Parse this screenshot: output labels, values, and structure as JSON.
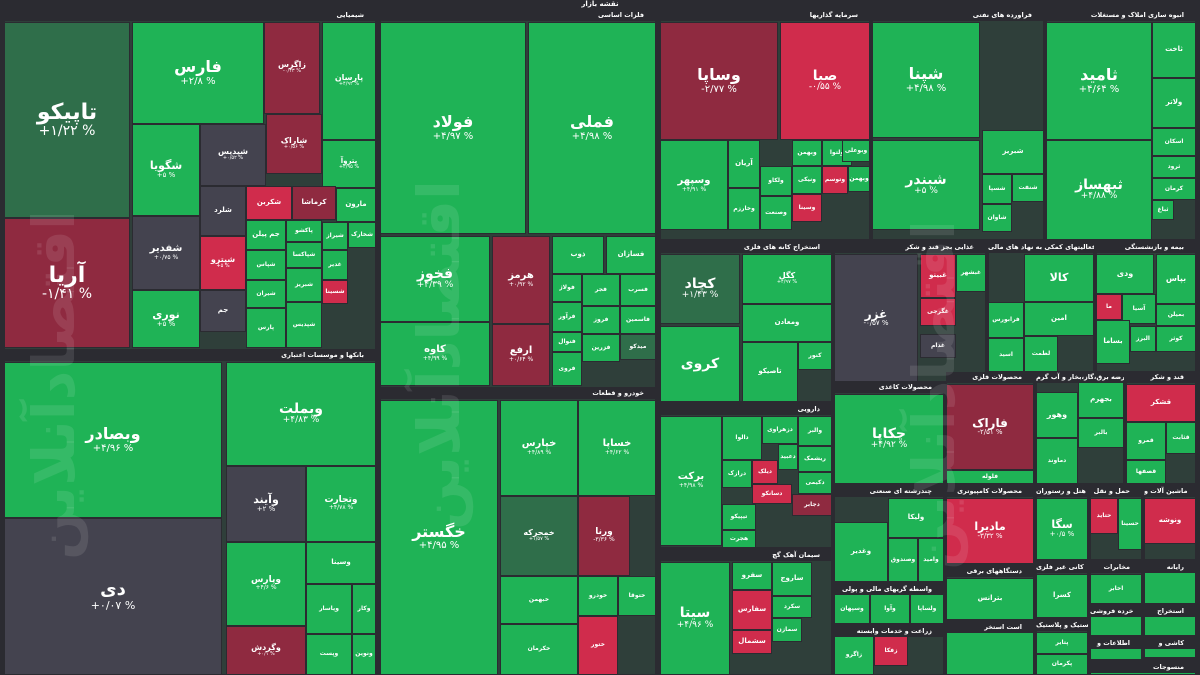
{
  "chart_data": {
    "type": "treemap",
    "title": "نقشه بازار",
    "colors": {
      "up_strong": "#1fb356",
      "up_mid": "#2a9a4f",
      "up_weak": "#2f6e4a",
      "flat": "#44434f",
      "down_weak": "#6a2c3c",
      "down_mid": "#8f2a40",
      "down_strong": "#d02c4c"
    },
    "sectors": [
      {
        "label": "شیمیایی",
        "tiles": [
          {
            "name": "تاپیکو",
            "change": "% ۱/۲۲+"
          },
          {
            "name": "آریا",
            "change": "% ۱/۴۱-"
          },
          {
            "name": "فارس",
            "change": "% ۲/۸+"
          },
          {
            "name": "زاگرس",
            "change": "% ۰/۴۳-"
          },
          {
            "name": "پارسان",
            "change": "% ۴/۹۲+"
          },
          {
            "name": "شگویا",
            "change": "% ۵+"
          },
          {
            "name": "شپدیس",
            "change": "% ۰/۵۲+"
          },
          {
            "name": "شاراک",
            "change": "% ۰/۵۶+"
          },
          {
            "name": "پتروآ",
            "change": "% ۲/۹۵+"
          },
          {
            "name": "شفدیر",
            "change": "% ۰/۷۵+"
          },
          {
            "name": "شکربن",
            "change": ""
          },
          {
            "name": "کرماشا",
            "change": ""
          },
          {
            "name": "مارون",
            "change": ""
          },
          {
            "name": "شلرد",
            "change": ""
          },
          {
            "name": "جم پیلن",
            "change": ""
          },
          {
            "name": "پاکشو",
            "change": ""
          },
          {
            "name": "شیراز",
            "change": ""
          },
          {
            "name": "شخارک",
            "change": ""
          },
          {
            "name": "شپترو",
            "change": "% ۵+"
          },
          {
            "name": "شپاکسا",
            "change": ""
          },
          {
            "name": "غدیر",
            "change": ""
          },
          {
            "name": "شپاس",
            "change": ""
          },
          {
            "name": "شیران",
            "change": ""
          },
          {
            "name": "شسینا",
            "change": ""
          },
          {
            "name": "نوری",
            "change": "% ۵+"
          },
          {
            "name": "جم",
            "change": ""
          },
          {
            "name": "پارس",
            "change": ""
          },
          {
            "name": "شبریز",
            "change": ""
          },
          {
            "name": "شپدیس",
            "change": ""
          }
        ]
      },
      {
        "label": "فلزات اساسی",
        "tiles": [
          {
            "name": "فولاد",
            "change": "% ۴/۹۷+"
          },
          {
            "name": "فملی",
            "change": "% ۴/۹۸+"
          },
          {
            "name": "فخوز",
            "change": "% ۴/۳۹+"
          },
          {
            "name": "هرمز",
            "change": "% ۰/۹۲+"
          },
          {
            "name": "ذوب",
            "change": ""
          },
          {
            "name": "فسازان",
            "change": ""
          },
          {
            "name": "کاوه",
            "change": "% ۴/۹۹+"
          },
          {
            "name": "ارفع",
            "change": "% ۰/۶۴+"
          },
          {
            "name": "فولاژ",
            "change": ""
          },
          {
            "name": "فجر",
            "change": ""
          },
          {
            "name": "فسرب",
            "change": ""
          },
          {
            "name": "فاسمین",
            "change": ""
          },
          {
            "name": "فروز",
            "change": ""
          },
          {
            "name": "فرآور",
            "change": ""
          },
          {
            "name": "فنوال",
            "change": ""
          },
          {
            "name": "فزرین",
            "change": ""
          },
          {
            "name": "فروی",
            "change": ""
          },
          {
            "name": "میدکو",
            "change": ""
          }
        ]
      },
      {
        "label": "سرمایه گذاریها",
        "tiles": [
          {
            "name": "وساپا",
            "change": "% ۲/۷۷-"
          },
          {
            "name": "صبا",
            "change": "% ۰/۵۵-"
          },
          {
            "name": "وسپهر",
            "change": "% ۴/۹۱+"
          },
          {
            "name": "آریان",
            "change": ""
          },
          {
            "name": "وبهمن",
            "change": ""
          },
          {
            "name": "ولتوا",
            "change": ""
          },
          {
            "name": "وبوعلی",
            "change": ""
          },
          {
            "name": "وخارزم",
            "change": ""
          },
          {
            "name": "وتوسم",
            "change": ""
          },
          {
            "name": "ولکاو",
            "change": ""
          },
          {
            "name": "ونیکی",
            "change": ""
          },
          {
            "name": "وصنعت",
            "change": ""
          },
          {
            "name": "وبهمن",
            "change": ""
          },
          {
            "name": "وسینا",
            "change": ""
          }
        ]
      },
      {
        "label": "فراورده های نفتی",
        "tiles": [
          {
            "name": "شپنا",
            "change": "% ۴/۹۸+"
          },
          {
            "name": "شبندر",
            "change": "% ۵+"
          },
          {
            "name": "شبریز",
            "change": ""
          },
          {
            "name": "شسپا",
            "change": ""
          },
          {
            "name": "شنفت",
            "change": ""
          },
          {
            "name": "شاوان",
            "change": ""
          }
        ]
      },
      {
        "label": "انبوه سازی املاک و مستغلات",
        "tiles": [
          {
            "name": "ثامید",
            "change": "% ۴/۶۴+"
          },
          {
            "name": "ثبهساز",
            "change": "% ۴/۸۸+"
          },
          {
            "name": "ثاخت",
            "change": ""
          },
          {
            "name": "ولاتر",
            "change": ""
          },
          {
            "name": "اسکان",
            "change": ""
          },
          {
            "name": "ثرود",
            "change": ""
          },
          {
            "name": "کرمان",
            "change": ""
          },
          {
            "name": "ثباغ",
            "change": ""
          }
        ]
      },
      {
        "label": "بانکها و موسسات اعتباری",
        "tiles": [
          {
            "name": "وبصادر",
            "change": "% ۴/۹۶+"
          },
          {
            "name": "دی",
            "change": "% ۰/۰۷+"
          },
          {
            "name": "وبملت",
            "change": "% ۴/۸۳+"
          },
          {
            "name": "وآیند",
            "change": "% ۲+"
          },
          {
            "name": "وتجارت",
            "change": "% ۴/۷۸+"
          },
          {
            "name": "وپارس",
            "change": "% ۴/۶+"
          },
          {
            "name": "وسینا",
            "change": ""
          },
          {
            "name": "وپاسار",
            "change": ""
          },
          {
            "name": "وکار",
            "change": ""
          },
          {
            "name": "وگردش",
            "change": "% ۰/۱+"
          },
          {
            "name": "وپست",
            "change": ""
          },
          {
            "name": "ونوین",
            "change": ""
          }
        ]
      },
      {
        "label": "خودرو و قطعات",
        "tiles": [
          {
            "name": "خگستر",
            "change": "% ۴/۹۵+"
          },
          {
            "name": "خپارس",
            "change": "% ۴/۸۹+"
          },
          {
            "name": "خساپا",
            "change": "% ۴/۶۲+"
          },
          {
            "name": "خمحرکه",
            "change": "% ۱/۵۷+"
          },
          {
            "name": "ورنا",
            "change": "% ۳/۳۶-"
          },
          {
            "name": "خبهمن",
            "change": ""
          },
          {
            "name": "خودرو",
            "change": ""
          },
          {
            "name": "ختوقا",
            "change": ""
          },
          {
            "name": "خکرمان",
            "change": ""
          },
          {
            "name": "ختور",
            "change": ""
          }
        ]
      },
      {
        "label": "استخراج کانه های فلزی",
        "tiles": [
          {
            "name": "کچاد",
            "change": "% ۱/۴۳+"
          },
          {
            "name": "کگل",
            "change": "% ۴/۹۷+"
          },
          {
            "name": "ومعادن",
            "change": ""
          },
          {
            "name": "کروی",
            "change": ""
          },
          {
            "name": "تاصیکو",
            "change": ""
          },
          {
            "name": "کنور",
            "change": ""
          }
        ]
      },
      {
        "label": "غذایی بجز قند و شکر",
        "tiles": [
          {
            "name": "غزر",
            "change": "% ۰/۵۷-"
          },
          {
            "name": "غبینو",
            "change": ""
          },
          {
            "name": "غگرجی",
            "change": ""
          },
          {
            "name": "غبشهر",
            "change": ""
          },
          {
            "name": "غدام",
            "change": ""
          }
        ]
      },
      {
        "label": "فعالیتهای کمکی به نهاد های مالی",
        "tiles": [
          {
            "name": "کالا",
            "change": ""
          },
          {
            "name": "امین",
            "change": ""
          },
          {
            "name": "فرابورس",
            "change": ""
          },
          {
            "name": "اسید",
            "change": ""
          },
          {
            "name": "لطمت",
            "change": ""
          }
        ]
      },
      {
        "label": "بیمه و بازنشستگی",
        "tiles": [
          {
            "name": "ودی",
            "change": ""
          },
          {
            "name": "بپاس",
            "change": ""
          },
          {
            "name": "آسیا",
            "change": ""
          },
          {
            "name": "بمیلن",
            "change": ""
          },
          {
            "name": "ما",
            "change": ""
          },
          {
            "name": "بساما",
            "change": ""
          },
          {
            "name": "کوثر",
            "change": ""
          },
          {
            "name": "البرز",
            "change": ""
          }
        ]
      },
      {
        "label": "دارویی",
        "tiles": [
          {
            "name": "برکت",
            "change": "% ۴/۹۸+"
          },
          {
            "name": "دالوا",
            "change": ""
          },
          {
            "name": "دزهراوی",
            "change": ""
          },
          {
            "name": "والبر",
            "change": ""
          },
          {
            "name": "ریشمک",
            "change": ""
          },
          {
            "name": "دعبید",
            "change": ""
          },
          {
            "name": "دیلک",
            "change": ""
          },
          {
            "name": "درازک",
            "change": ""
          },
          {
            "name": "تیپیکو",
            "change": ""
          },
          {
            "name": "دسانکو",
            "change": ""
          },
          {
            "name": "دکیمی",
            "change": ""
          },
          {
            "name": "دجابر",
            "change": ""
          },
          {
            "name": "هجرت",
            "change": ""
          }
        ]
      },
      {
        "label": "سیمان آهک گچ",
        "tiles": [
          {
            "name": "سیتا",
            "change": "% ۴/۹۶+"
          },
          {
            "name": "سفرو",
            "change": ""
          },
          {
            "name": "ساروج",
            "change": ""
          },
          {
            "name": "سفارس",
            "change": ""
          },
          {
            "name": "سکرد",
            "change": ""
          },
          {
            "name": "سمازن",
            "change": ""
          },
          {
            "name": "سشمال",
            "change": ""
          }
        ]
      },
      {
        "label": "محصولات کاغذی",
        "tiles": [
          {
            "name": "چکاپا",
            "change": "% ۴/۹۲+"
          }
        ]
      },
      {
        "label": "محصولات فلزی",
        "tiles": [
          {
            "name": "فاراک",
            "change": "% ۲/۵۱-"
          },
          {
            "name": "فلوله",
            "change": ""
          }
        ]
      },
      {
        "label": "عرضه برق،گاز،بخار و آب گرم",
        "tiles": [
          {
            "name": "بجهرم",
            "change": ""
          },
          {
            "name": "وهور",
            "change": ""
          },
          {
            "name": "بالبر",
            "change": ""
          },
          {
            "name": "دماوند",
            "change": ""
          }
        ]
      },
      {
        "label": "قند و شکر",
        "tiles": [
          {
            "name": "قشکر",
            "change": ""
          },
          {
            "name": "قثابت",
            "change": ""
          },
          {
            "name": "قمرو",
            "change": ""
          },
          {
            "name": "قصفها",
            "change": ""
          }
        ]
      },
      {
        "label": "چندرشته ای صنعتی",
        "tiles": [
          {
            "name": "ولیکا",
            "change": ""
          },
          {
            "name": "وغدیر",
            "change": ""
          },
          {
            "name": "وصندوق",
            "change": ""
          },
          {
            "name": "وامید",
            "change": ""
          }
        ]
      },
      {
        "label": "محصولات کامپیوتری",
        "tiles": [
          {
            "name": "مادیرا",
            "change": "% ۳/۳۲-"
          }
        ]
      },
      {
        "label": "هتل و رستوران",
        "tiles": [
          {
            "name": "سگا",
            "change": "% ۰/۵+"
          }
        ]
      },
      {
        "label": "حمل و نقل",
        "tiles": [
          {
            "name": "حتاید",
            "change": ""
          },
          {
            "name": "حسینا",
            "change": ""
          }
        ]
      },
      {
        "label": "ماشین آلات و",
        "tiles": [
          {
            "name": "ونوشه",
            "change": ""
          }
        ]
      },
      {
        "label": "دستگاههای برقی",
        "tiles": [
          {
            "name": "بترانس",
            "change": ""
          }
        ]
      },
      {
        "label": "کانی غیر فلزی",
        "tiles": [
          {
            "name": "کسرا",
            "change": ""
          }
        ]
      },
      {
        "label": "مخابرات",
        "tiles": [
          {
            "name": "اخابر",
            "change": ""
          }
        ]
      },
      {
        "label": "رایانه",
        "tiles": []
      },
      {
        "label": "واسطه گریهای مالی و پولی",
        "tiles": [
          {
            "name": "وسپهان",
            "change": ""
          },
          {
            "name": "وآوا",
            "change": ""
          },
          {
            "name": "ولساپا",
            "change": ""
          }
        ]
      },
      {
        "label": "زراعت و خدمات وابسته",
        "tiles": [
          {
            "name": "زاگرو",
            "change": ""
          },
          {
            "name": "زفکا",
            "change": ""
          }
        ]
      },
      {
        "label": "لاستیک و پلاستیک",
        "tiles": [
          {
            "name": "پتایر",
            "change": ""
          },
          {
            "name": "پکرمان",
            "change": ""
          }
        ]
      },
      {
        "label": "خرده فروشی",
        "tiles": []
      },
      {
        "label": "استخراج",
        "tiles": []
      },
      {
        "label": "کاشی و",
        "tiles": []
      },
      {
        "label": "اطلاعات و",
        "tiles": []
      },
      {
        "label": "منسوجات",
        "tiles": []
      },
      {
        "label": "است استخر",
        "tiles": []
      }
    ]
  },
  "watermark": "اقتصادآنلاین"
}
